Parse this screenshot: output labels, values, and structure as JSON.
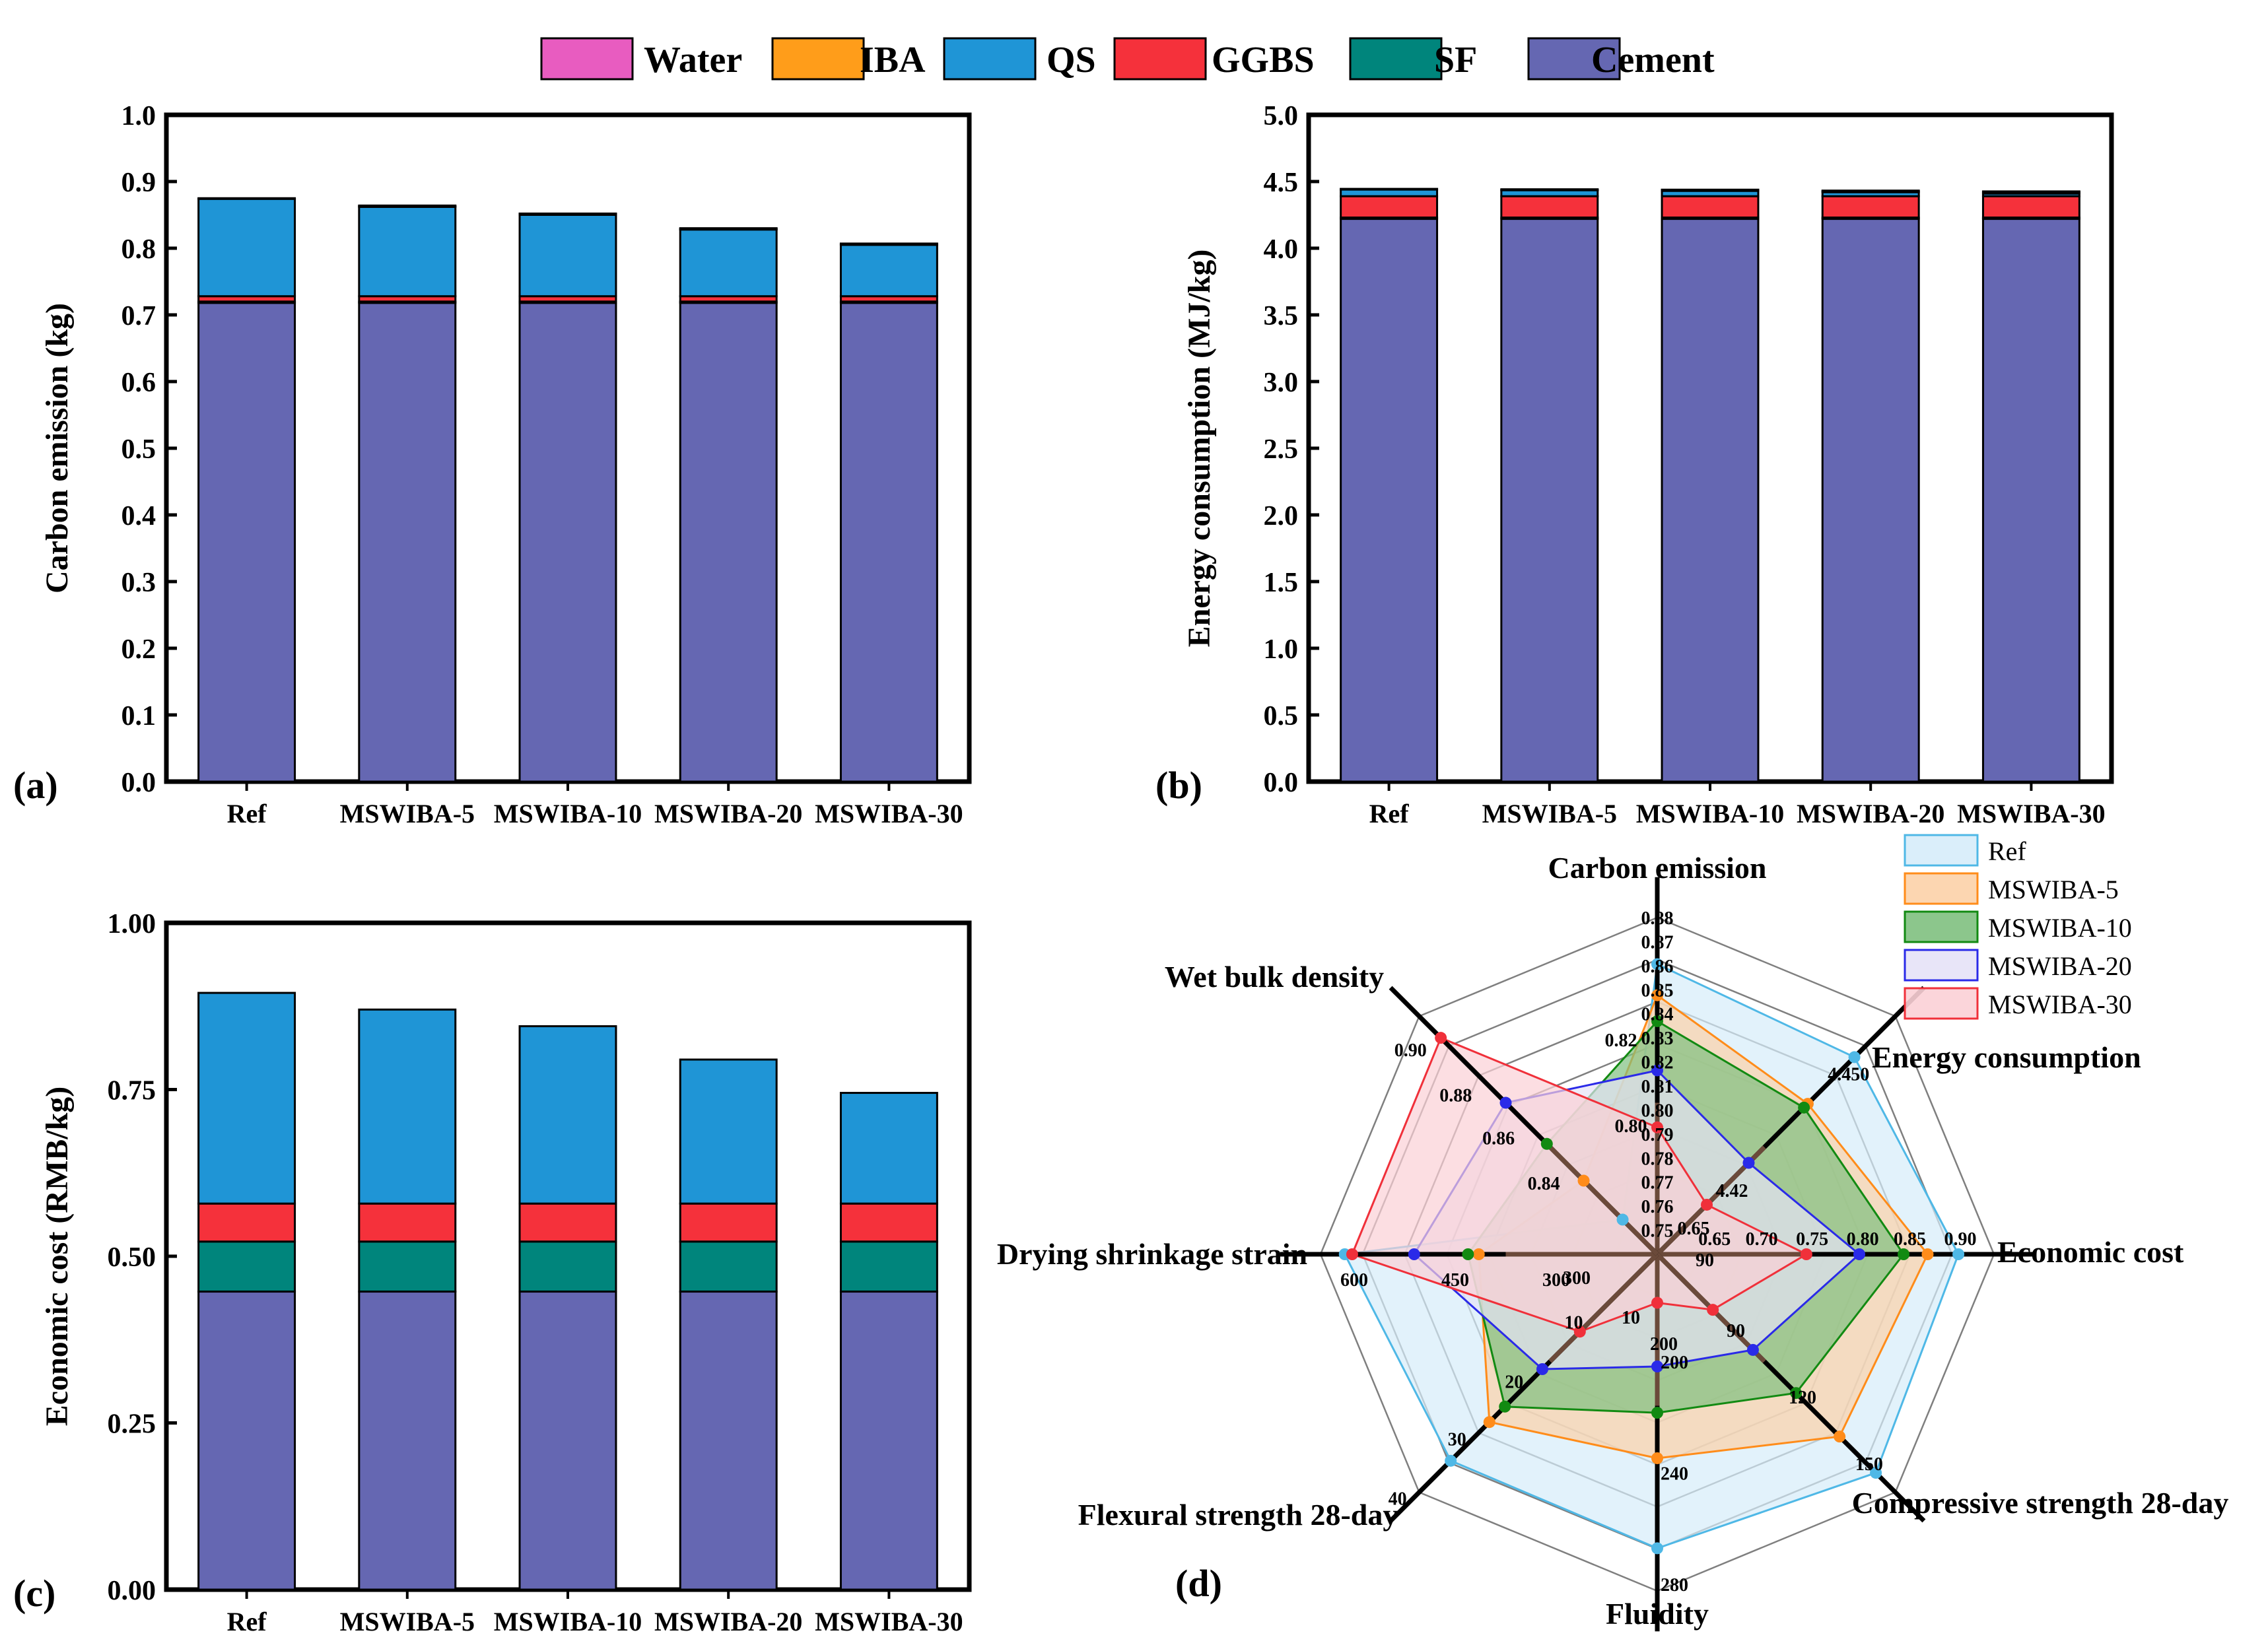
{
  "colors": {
    "Water": "#e85cc0",
    "IBA": "#ff9d1a",
    "QS": "#1f95d6",
    "GGBS": "#f5313b",
    "SF": "#00857c",
    "Cement": "#6567b2",
    "axis": "#000000",
    "radar_grid": "#7f7f7f",
    "radar_spoke": "#000000",
    "radar_inner": "#6b4a3a"
  },
  "legend": [
    "Water",
    "IBA",
    "QS",
    "GGBS",
    "SF",
    "Cement"
  ],
  "chart_data": [
    {
      "panel": "(a)",
      "type": "bar",
      "stacked": true,
      "categories": [
        "Ref",
        "MSWIBA-5",
        "MSWIBA-10",
        "MSWIBA-20",
        "MSWIBA-30"
      ],
      "ylabel": "Carbon emission (kg)",
      "xlabel": "",
      "ylim": [
        0,
        1.0
      ],
      "yticks": [
        "0.0",
        "0.1",
        "0.2",
        "0.3",
        "0.4",
        "0.5",
        "0.6",
        "0.7",
        "0.8",
        "0.9",
        "1.0"
      ],
      "series": [
        {
          "name": "Cement",
          "values": [
            0.718,
            0.718,
            0.718,
            0.718,
            0.718
          ]
        },
        {
          "name": "SF",
          "values": [
            0.002,
            0.002,
            0.002,
            0.002,
            0.002
          ]
        },
        {
          "name": "GGBS",
          "values": [
            0.008,
            0.008,
            0.008,
            0.008,
            0.008
          ]
        },
        {
          "name": "QS",
          "values": [
            0.146,
            0.134,
            0.122,
            0.1,
            0.077
          ]
        },
        {
          "name": "IBA",
          "values": [
            0.0,
            0.001,
            0.001,
            0.001,
            0.001
          ]
        },
        {
          "name": "Water",
          "values": [
            0.001,
            0.001,
            0.001,
            0.001,
            0.001
          ]
        }
      ]
    },
    {
      "panel": "(b)",
      "type": "bar",
      "stacked": true,
      "categories": [
        "Ref",
        "MSWIBA-5",
        "MSWIBA-10",
        "MSWIBA-20",
        "MSWIBA-30"
      ],
      "ylabel": "Energy consumption (MJ/kg)",
      "xlabel": "",
      "ylim": [
        0,
        5.0
      ],
      "yticks": [
        "0.0",
        "0.5",
        "1.0",
        "1.5",
        "2.0",
        "2.5",
        "3.0",
        "3.5",
        "4.0",
        "4.5",
        "5.0"
      ],
      "series": [
        {
          "name": "Cement",
          "values": [
            4.22,
            4.22,
            4.22,
            4.22,
            4.22
          ]
        },
        {
          "name": "SF",
          "values": [
            0.01,
            0.01,
            0.01,
            0.01,
            0.01
          ]
        },
        {
          "name": "GGBS",
          "values": [
            0.16,
            0.16,
            0.16,
            0.16,
            0.16
          ]
        },
        {
          "name": "QS",
          "values": [
            0.05,
            0.045,
            0.04,
            0.03,
            0.02
          ]
        },
        {
          "name": "IBA",
          "values": [
            0.0,
            0.002,
            0.004,
            0.007,
            0.011
          ]
        },
        {
          "name": "Water",
          "values": [
            0.005,
            0.005,
            0.005,
            0.005,
            0.005
          ]
        }
      ]
    },
    {
      "panel": "(c)",
      "type": "bar",
      "stacked": true,
      "categories": [
        "Ref",
        "MSWIBA-5",
        "MSWIBA-10",
        "MSWIBA-20",
        "MSWIBA-30"
      ],
      "ylabel": "Economic cost (RMB/kg)",
      "xlabel": "",
      "ylim": [
        0,
        1.0
      ],
      "yticks": [
        "0.00",
        "0.25",
        "0.50",
        "0.75",
        "1.00"
      ],
      "series": [
        {
          "name": "Cement",
          "values": [
            0.447,
            0.447,
            0.447,
            0.447,
            0.447
          ]
        },
        {
          "name": "SF",
          "values": [
            0.075,
            0.075,
            0.075,
            0.075,
            0.075
          ]
        },
        {
          "name": "GGBS",
          "values": [
            0.057,
            0.057,
            0.057,
            0.057,
            0.057
          ]
        },
        {
          "name": "QS",
          "values": [
            0.316,
            0.291,
            0.266,
            0.216,
            0.166
          ]
        },
        {
          "name": "IBA",
          "values": [
            0.0,
            0.0,
            0.0,
            0.0,
            0.0
          ]
        },
        {
          "name": "Water",
          "values": [
            0.0,
            0.0,
            0.0,
            0.0,
            0.0
          ]
        }
      ]
    },
    {
      "panel": "(d)",
      "type": "radar",
      "axes": [
        {
          "name": "Carbon emission",
          "range": [
            0.75,
            0.88
          ],
          "ticks": [
            "0.75",
            "0.76",
            "0.77",
            "0.78",
            "0.79",
            "0.80",
            "0.81",
            "0.82",
            "0.83",
            "0.84",
            "0.85",
            "0.86",
            "0.87",
            "0.88"
          ]
        },
        {
          "name": "Energy consumption",
          "range": [
            4.41,
            4.46
          ],
          "ticks": [
            "4.42",
            "4.450"
          ]
        },
        {
          "name": "Economic cost",
          "range": [
            0.6,
            0.95
          ],
          "ticks": [
            "0.65",
            "0.70",
            "0.75",
            "0.80",
            "0.85",
            "0.90"
          ]
        },
        {
          "name": "Compressive strength 28-day",
          "range": [
            60,
            165
          ],
          "ticks": [
            "90",
            "120",
            "150"
          ]
        },
        {
          "name": "Fluidity",
          "range": [
            160,
            280
          ],
          "ticks": [
            "200",
            "240",
            "280"
          ]
        },
        {
          "name": "Flexural strength 28-day",
          "range": [
            0,
            40
          ],
          "ticks": [
            "10",
            "20",
            "30",
            "40"
          ]
        },
        {
          "name": "Drying shrinkage strain",
          "range": [
            150,
            650
          ],
          "ticks": [
            "300",
            "450",
            "600"
          ]
        },
        {
          "name": "Wet bulk density",
          "range": [
            0.8,
            0.91
          ],
          "ticks": [
            "0.84",
            "0.86",
            "0.88",
            "0.90"
          ]
        }
      ],
      "inner_labels": [
        "0.80",
        "0.65",
        "90",
        "200",
        "10",
        "300",
        "0.82"
      ],
      "series": [
        {
          "name": "Ref",
          "color": "#4fb8e6",
          "fill": "#d6ecfa",
          "values": [
            0.862,
            4.4514,
            0.913,
            156.4,
            264.8,
            34.7,
            614,
            0.816
          ]
        },
        {
          "name": "MSWIBA-5",
          "color": "#ff8c1a",
          "fill": "#fcd2a8",
          "values": [
            0.85,
            4.4416,
            0.881,
            140.4,
            232.7,
            28.2,
            415,
            0.834
          ]
        },
        {
          "name": "MSWIBA-10",
          "color": "#128a12",
          "fill": "#7fc07f",
          "values": [
            0.84,
            4.4408,
            0.856,
            121.2,
            216.5,
            25.6,
            431,
            0.851
          ]
        },
        {
          "name": "MSWIBA-20",
          "color": "#2a2ae8",
          "fill": "#e6e2f7",
          "values": [
            0.821,
            4.4292,
            0.81,
            102.2,
            200.0,
            19.3,
            511,
            0.87
          ]
        },
        {
          "name": "MSWIBA-30",
          "color": "#f0303a",
          "fill": "#fbd0d6",
          "values": [
            0.799,
            4.4204,
            0.755,
            84.5,
            177.3,
            13.0,
            603,
            0.9
          ]
        }
      ]
    }
  ]
}
